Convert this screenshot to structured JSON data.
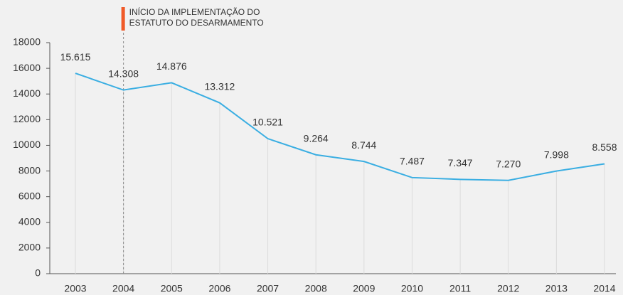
{
  "chart_data": {
    "type": "line",
    "categories": [
      "2003",
      "2004",
      "2005",
      "2006",
      "2007",
      "2008",
      "2009",
      "2010",
      "2011",
      "2012",
      "2013",
      "2014"
    ],
    "series": [
      {
        "color": "#3aaee2",
        "values": [
          15615,
          14308,
          14876,
          13312,
          10521,
          9264,
          8744,
          7487,
          7347,
          7270,
          7998,
          8558
        ],
        "value_labels": [
          "15.615",
          "14.308",
          "14.876",
          "13.312",
          "10.521",
          "9.264",
          "8.744",
          "7.487",
          "7.347",
          "7.270",
          "7.998",
          "8.558"
        ]
      }
    ],
    "ylim": [
      0,
      18000
    ],
    "yticks": [
      0,
      2000,
      4000,
      6000,
      8000,
      10000,
      12000,
      14000,
      16000,
      18000
    ],
    "annotation": {
      "at": "2004",
      "color": "#f05a28",
      "lines": [
        "INÍCIO DA IMPLEMENTAÇÃO DO",
        "ESTATUTO DO DESARMAMENTO"
      ]
    }
  }
}
